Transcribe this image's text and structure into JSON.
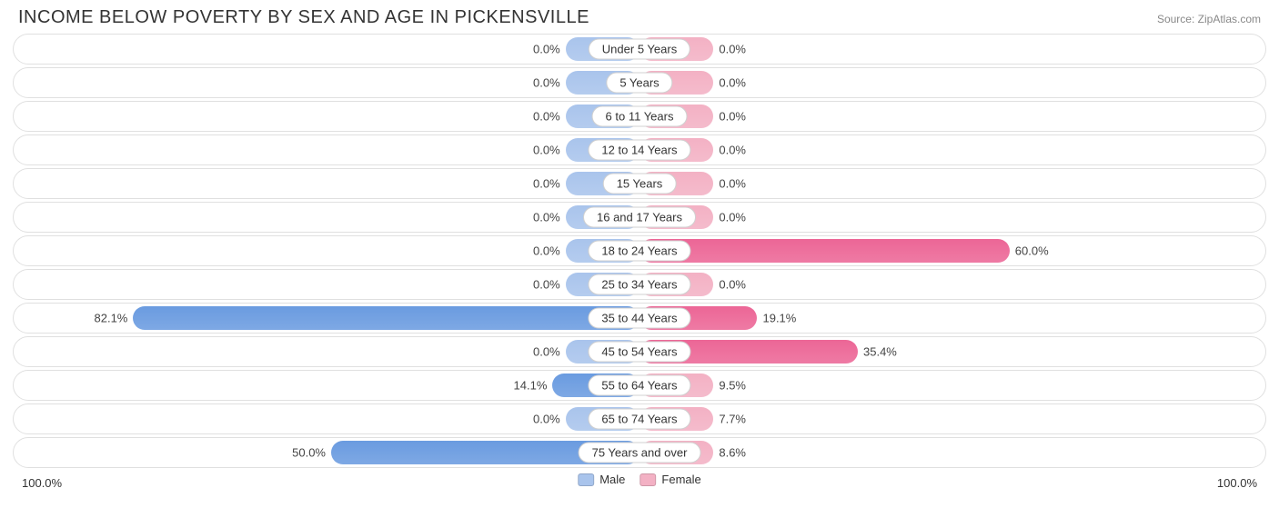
{
  "header": {
    "title": "INCOME BELOW POVERTY BY SEX AND AGE IN PICKENSVILLE",
    "source": "Source: ZipAtlas.com"
  },
  "chart": {
    "type": "diverging-bar",
    "axis_max": 100.0,
    "axis_left_label": "100.0%",
    "axis_right_label": "100.0%",
    "base_bar_pct": 12.0,
    "colors": {
      "male_base": "#a9c4ec",
      "male_strong": "#6a9be0",
      "female_base": "#f3b1c4",
      "female_strong": "#ec6696",
      "row_border": "#e0e0e0",
      "label_border": "#d0d0d0",
      "text": "#333333",
      "background": "#ffffff"
    },
    "legend": [
      {
        "label": "Male",
        "color": "#a9c4ec"
      },
      {
        "label": "Female",
        "color": "#f3b1c4"
      }
    ],
    "rows": [
      {
        "label": "Under 5 Years",
        "male": 0.0,
        "female": 0.0
      },
      {
        "label": "5 Years",
        "male": 0.0,
        "female": 0.0
      },
      {
        "label": "6 to 11 Years",
        "male": 0.0,
        "female": 0.0
      },
      {
        "label": "12 to 14 Years",
        "male": 0.0,
        "female": 0.0
      },
      {
        "label": "15 Years",
        "male": 0.0,
        "female": 0.0
      },
      {
        "label": "16 and 17 Years",
        "male": 0.0,
        "female": 0.0
      },
      {
        "label": "18 to 24 Years",
        "male": 0.0,
        "female": 60.0
      },
      {
        "label": "25 to 34 Years",
        "male": 0.0,
        "female": 0.0
      },
      {
        "label": "35 to 44 Years",
        "male": 82.1,
        "female": 19.1
      },
      {
        "label": "45 to 54 Years",
        "male": 0.0,
        "female": 35.4
      },
      {
        "label": "55 to 64 Years",
        "male": 14.1,
        "female": 9.5
      },
      {
        "label": "65 to 74 Years",
        "male": 0.0,
        "female": 7.7
      },
      {
        "label": "75 Years and over",
        "male": 50.0,
        "female": 8.6
      }
    ],
    "label_fontsize": 13,
    "title_fontsize": 20
  }
}
